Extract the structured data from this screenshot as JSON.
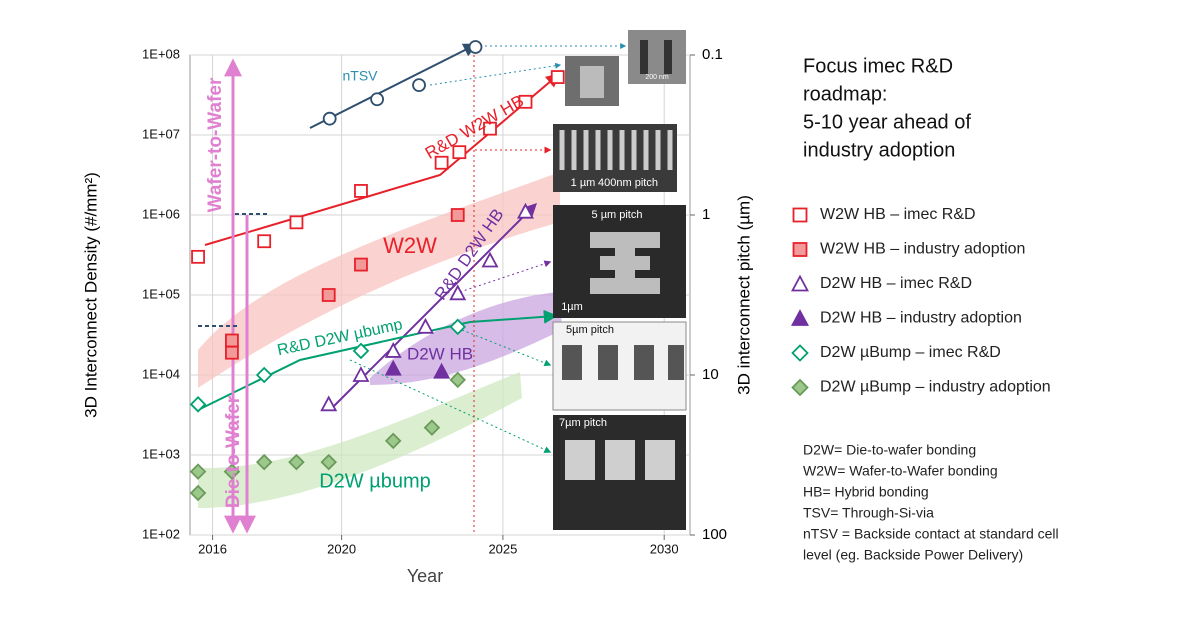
{
  "chart_data": {
    "type": "scatter",
    "xlabel": "Year",
    "ylabel": "3D Interconnect Density (#/mm²)",
    "y2label": "3D interconnect pitch (µm)",
    "xlim": [
      2015.3,
      2030.8
    ],
    "xticks": [
      2016,
      2020,
      2025,
      2030
    ],
    "ylim": [
      100,
      100000000
    ],
    "yscale": "log",
    "yticks": [
      {
        "value": 100,
        "label": "1E+02"
      },
      {
        "value": 1000,
        "label": "1E+03"
      },
      {
        "value": 10000,
        "label": "1E+04"
      },
      {
        "value": 100000,
        "label": "1E+05"
      },
      {
        "value": 1000000,
        "label": "1E+06"
      },
      {
        "value": 10000000,
        "label": "1E+07"
      },
      {
        "value": 100000000,
        "label": "1E+08"
      }
    ],
    "y2lim": [
      0.1,
      100
    ],
    "y2scale": "log",
    "y2reversed": true,
    "y2ticks": [
      0.1,
      1,
      10,
      100
    ],
    "grid": true,
    "series": [
      {
        "name": "W2W HB – imec R&D",
        "color": "#e8202a",
        "marker": "square",
        "filled": false,
        "x": [
          2015.55,
          2017.6,
          2018.6,
          2020.6,
          2023.1,
          2023.65,
          2024.6,
          2025.7,
          2026.7
        ],
        "values": [
          300000,
          470000,
          810000,
          2000000,
          4500000,
          6100000,
          12000000,
          26000000,
          53000000
        ]
      },
      {
        "name": "W2W HB – industry adoption",
        "color": "#e8202a",
        "fill": "#f29a9a",
        "marker": "square",
        "filled": true,
        "x": [
          2016.6,
          2016.6,
          2019.6,
          2020.6,
          2023.6
        ],
        "values": [
          27000,
          19000,
          100000,
          240000,
          1000000
        ]
      },
      {
        "name": "D2W HB – imec R&D",
        "color": "#7030a0",
        "marker": "triangle",
        "filled": false,
        "x": [
          2019.6,
          2020.6,
          2021.6,
          2022.6,
          2023.6,
          2024.6,
          2025.7
        ],
        "values": [
          4300,
          10000,
          20000,
          40000,
          105000,
          270000,
          1100000
        ]
      },
      {
        "name": "D2W HB – industry adoption",
        "color": "#7030a0",
        "fill": "#7030a0",
        "marker": "triangle",
        "filled": true,
        "x": [
          2021.6,
          2023.1
        ],
        "values": [
          12000,
          11000
        ]
      },
      {
        "name": "D2W µBump – imec R&D",
        "color": "#00a070",
        "marker": "diamond",
        "filled": false,
        "x": [
          2015.55,
          2017.6,
          2020.6,
          2023.6
        ],
        "values": [
          4300,
          10000,
          20000,
          40000
        ]
      },
      {
        "name": "D2W µBump – industry adoption",
        "color": "#6a9a5a",
        "fill": "#9cc88c",
        "marker": "diamond",
        "filled": true,
        "x": [
          2015.55,
          2015.55,
          2016.6,
          2017.6,
          2018.6,
          2019.6,
          2021.6,
          2022.8,
          2023.6
        ],
        "values": [
          335,
          620,
          620,
          815,
          815,
          815,
          1500,
          2200,
          8700
        ]
      },
      {
        "name": "nTSV",
        "color": "#2f4f6f",
        "marker": "circle",
        "filled": false,
        "x": [
          2019.63,
          2021.1,
          2022.4,
          2024.15
        ],
        "values": [
          16000000,
          28000000,
          42000000,
          126000000
        ]
      }
    ],
    "annotations": [
      "nTSV",
      "R&D W2W HB",
      "W2W",
      "R&D D2W HB",
      "R&D D2W µbump",
      "D2W HB",
      "D2W µbump",
      "Wafer-to-Wafer",
      "Die-to-Wafer"
    ],
    "image_labels": [
      "200 nm",
      "1 µm",
      "400nm pitch",
      "5 µm pitch",
      "1µm",
      "5µm pitch",
      "7µm pitch"
    ]
  },
  "side_panel": {
    "heading": [
      "Focus imec R&D",
      "roadmap:",
      "5-10 year ahead of",
      "industry adoption"
    ],
    "notes": [
      "D2W= Die-to-wafer bonding",
      "W2W= Wafer-to-Wafer bonding",
      "HB= Hybrid bonding",
      "TSV= Through-Si-via",
      "nTSV = Backside contact at standard cell",
      "level (eg. Backside Power Delivery)"
    ]
  }
}
